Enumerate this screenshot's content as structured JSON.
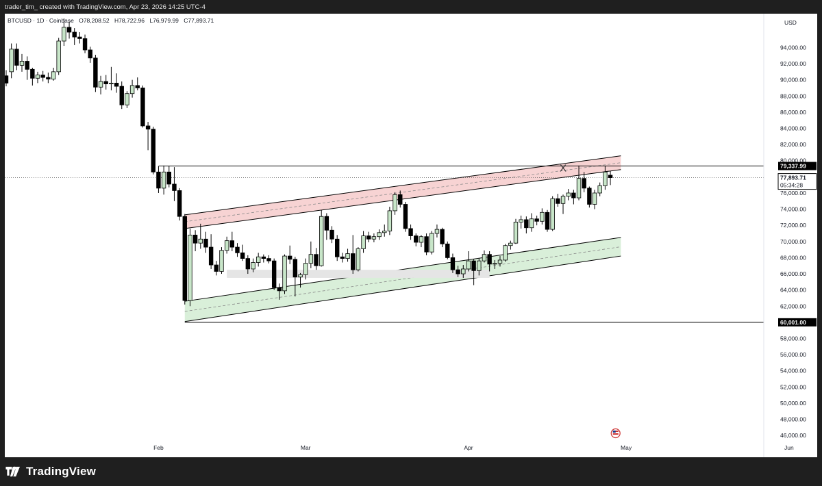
{
  "caption": "trader_tim_ created with TradingView.com, Apr 23, 2026 14:25 UTC-4",
  "symbol": {
    "ticker": "BTCUSD · 1D · Coinbase",
    "open": "O78,208.52",
    "high": "H78,722.96",
    "low": "L76,979.99",
    "close": "C77,893.71"
  },
  "brand": {
    "name": "TradingView"
  },
  "colors": {
    "up_fill": "#c8e6c9",
    "down_fill": "#000000",
    "wick": "#000000",
    "resistance_band": "#f7d3d3",
    "support_band": "#d9efd9",
    "consolidation_zone": "#e5e5e5"
  },
  "chart_data": {
    "type": "candlestick",
    "currency": "USD",
    "ylim": [
      45000,
      97000
    ],
    "yticks": [
      46000,
      48000,
      50000,
      52000,
      54000,
      56000,
      58000,
      60000,
      62000,
      64000,
      66000,
      68000,
      70000,
      72000,
      74000,
      76000,
      78000,
      80000,
      82000,
      84000,
      86000,
      88000,
      90000,
      92000,
      94000
    ],
    "ytick_labels": [
      "46,000.00",
      "48,000.00",
      "50,000.00",
      "52,000.00",
      "54,000.00",
      "56,000.00",
      "58,000.00",
      "60,000.00",
      "62,000.00",
      "64,000.00",
      "66,000.00",
      "68,000.00",
      "70,000.00",
      "72,000.00",
      "74,000.00",
      "76,000.00",
      "78,000.00",
      "80,000.00",
      "82,000.00",
      "84,000.00",
      "86,000.00",
      "88,000.00",
      "90,000.00",
      "92,000.00",
      "94,000.00"
    ],
    "xticks": [
      {
        "date": "2026-02-01",
        "label": "Feb"
      },
      {
        "date": "2026-03-01",
        "label": "Mar"
      },
      {
        "date": "2026-04-01",
        "label": "Apr"
      },
      {
        "date": "2026-05-01",
        "label": "May"
      },
      {
        "date": "2026-06-01",
        "label": "Jun"
      }
    ],
    "xlim": [
      "2026-01-03",
      "2026-06-01"
    ],
    "current_price": {
      "value": 77893.71,
      "label": "77,893.71",
      "countdown": "05:34:28"
    },
    "horizontal_levels": [
      {
        "value": 79337.99,
        "label": "79,337.99",
        "from": "2026-02-01"
      },
      {
        "value": 60001.0,
        "label": "60,001.00",
        "from": "2026-02-06"
      }
    ],
    "channel": {
      "upper_band": {
        "from": {
          "date": "2026-02-06",
          "top": 73300,
          "bottom": 71600
        },
        "to": {
          "date": "2026-04-30",
          "top": 80600,
          "bottom": 78900
        }
      },
      "lower_band": {
        "from": {
          "date": "2026-02-06",
          "top": 62600,
          "bottom": 60100
        },
        "to": {
          "date": "2026-04-30",
          "top": 70500,
          "bottom": 68200
        }
      }
    },
    "zone": {
      "from": "2026-02-14",
      "to": "2026-04-05",
      "top": 66500,
      "bottom": 65500
    },
    "marker": {
      "date": "2026-04-19",
      "label": "X",
      "value": 79100
    },
    "event_icon": {
      "date": "2026-04-29",
      "name": "us-flag-icon"
    },
    "candles": [
      [
        "2026-01-03",
        90500,
        91200,
        89200,
        89600
      ],
      [
        "2026-01-04",
        91000,
        94500,
        90200,
        93800
      ],
      [
        "2026-01-05",
        93800,
        94500,
        91200,
        91800
      ],
      [
        "2026-01-06",
        91800,
        93200,
        91000,
        92300
      ],
      [
        "2026-01-07",
        92300,
        92900,
        90000,
        91300
      ],
      [
        "2026-01-08",
        91300,
        91500,
        89300,
        90200
      ],
      [
        "2026-01-09",
        90200,
        91000,
        89600,
        90600
      ],
      [
        "2026-01-10",
        90600,
        91100,
        89800,
        90300
      ],
      [
        "2026-01-11",
        90300,
        90900,
        89600,
        90100
      ],
      [
        "2026-01-12",
        90100,
        91500,
        89900,
        91000
      ],
      [
        "2026-01-13",
        91000,
        95200,
        90600,
        94800
      ],
      [
        "2026-01-14",
        94800,
        97600,
        94200,
        96500
      ],
      [
        "2026-01-15",
        96500,
        97200,
        95100,
        95900
      ],
      [
        "2026-01-16",
        95900,
        96400,
        94300,
        95300
      ],
      [
        "2026-01-17",
        95300,
        95900,
        94500,
        95100
      ],
      [
        "2026-01-18",
        95100,
        95600,
        93300,
        93700
      ],
      [
        "2026-01-19",
        93700,
        94100,
        92100,
        92700
      ],
      [
        "2026-01-20",
        92700,
        93100,
        88500,
        89100
      ],
      [
        "2026-01-21",
        89100,
        90500,
        88200,
        89800
      ],
      [
        "2026-01-22",
        89800,
        90600,
        88800,
        89500
      ],
      [
        "2026-01-23",
        89500,
        91600,
        88700,
        89600
      ],
      [
        "2026-01-24",
        89600,
        90800,
        88400,
        89200
      ],
      [
        "2026-01-25",
        89200,
        89800,
        86400,
        86900
      ],
      [
        "2026-01-26",
        86900,
        88600,
        86500,
        88300
      ],
      [
        "2026-01-27",
        88300,
        90000,
        87800,
        89300
      ],
      [
        "2026-01-28",
        89300,
        90300,
        88700,
        89000
      ],
      [
        "2026-01-29",
        89000,
        89300,
        84100,
        84300
      ],
      [
        "2026-01-30",
        84300,
        84800,
        81300,
        83900
      ],
      [
        "2026-01-31",
        83900,
        84200,
        78300,
        78600
      ],
      [
        "2026-02-01",
        78600,
        79300,
        76000,
        76600
      ],
      [
        "2026-02-02",
        76600,
        79400,
        75800,
        78600
      ],
      [
        "2026-02-03",
        78600,
        79300,
        76700,
        77100
      ],
      [
        "2026-02-04",
        77100,
        79200,
        75000,
        76300
      ],
      [
        "2026-02-05",
        76300,
        76600,
        72600,
        73100
      ],
      [
        "2026-02-06",
        73100,
        73400,
        62200,
        62700
      ],
      [
        "2026-02-07",
        62700,
        71600,
        62000,
        70800
      ],
      [
        "2026-02-08",
        70800,
        71400,
        68800,
        69800
      ],
      [
        "2026-02-09",
        69800,
        72200,
        69100,
        70300
      ],
      [
        "2026-02-10",
        70300,
        71200,
        68600,
        69300
      ],
      [
        "2026-02-11",
        69300,
        70900,
        66600,
        67100
      ],
      [
        "2026-02-12",
        67100,
        67600,
        65800,
        66300
      ],
      [
        "2026-02-13",
        66300,
        69300,
        66000,
        68900
      ],
      [
        "2026-02-14",
        68900,
        70600,
        68500,
        70100
      ],
      [
        "2026-02-15",
        70100,
        71200,
        68800,
        69300
      ],
      [
        "2026-02-16",
        69300,
        69800,
        68100,
        68600
      ],
      [
        "2026-02-17",
        68600,
        69600,
        67600,
        67900
      ],
      [
        "2026-02-18",
        67900,
        68300,
        66000,
        66600
      ],
      [
        "2026-02-19",
        66600,
        67900,
        66200,
        67400
      ],
      [
        "2026-02-20",
        67400,
        68600,
        66900,
        68100
      ],
      [
        "2026-02-21",
        68100,
        68400,
        67400,
        67900
      ],
      [
        "2026-02-22",
        67900,
        68300,
        67300,
        67600
      ],
      [
        "2026-02-23",
        67600,
        67900,
        64000,
        64300
      ],
      [
        "2026-02-24",
        64300,
        64800,
        62800,
        63900
      ],
      [
        "2026-02-25",
        63900,
        68400,
        63500,
        68200
      ],
      [
        "2026-02-26",
        68200,
        69500,
        67200,
        67800
      ],
      [
        "2026-02-27",
        67800,
        68100,
        63200,
        65600
      ],
      [
        "2026-02-28",
        65600,
        66100,
        64300,
        65900
      ],
      [
        "2026-03-01",
        65900,
        67900,
        65300,
        67300
      ],
      [
        "2026-03-02",
        67300,
        70000,
        66700,
        68400
      ],
      [
        "2026-03-03",
        68400,
        69200,
        66500,
        67000
      ],
      [
        "2026-03-04",
        67000,
        73900,
        66900,
        73100
      ],
      [
        "2026-03-05",
        73100,
        73500,
        70200,
        71400
      ],
      [
        "2026-03-06",
        71400,
        71900,
        69800,
        70300
      ],
      [
        "2026-03-07",
        70300,
        70800,
        67600,
        68100
      ],
      [
        "2026-03-08",
        68100,
        68600,
        67400,
        67900
      ],
      [
        "2026-03-09",
        67900,
        69100,
        67500,
        68500
      ],
      [
        "2026-03-10",
        68500,
        70800,
        66000,
        66500
      ],
      [
        "2026-03-11",
        66500,
        69300,
        66300,
        69100
      ],
      [
        "2026-03-12",
        69100,
        71300,
        68600,
        70700
      ],
      [
        "2026-03-13",
        70700,
        71200,
        69900,
        70300
      ],
      [
        "2026-03-14",
        70300,
        71000,
        69900,
        70600
      ],
      [
        "2026-03-15",
        70600,
        71500,
        70200,
        71100
      ],
      [
        "2026-03-16",
        71100,
        72100,
        70600,
        71300
      ],
      [
        "2026-03-17",
        71300,
        74300,
        70800,
        73800
      ],
      [
        "2026-03-18",
        73800,
        76100,
        73300,
        75800
      ],
      [
        "2026-03-19",
        75800,
        76300,
        74200,
        74600
      ],
      [
        "2026-03-20",
        74600,
        74900,
        71200,
        71600
      ],
      [
        "2026-03-21",
        71600,
        72100,
        70200,
        70700
      ],
      [
        "2026-03-22",
        70700,
        71000,
        69400,
        69900
      ],
      [
        "2026-03-23",
        69900,
        70800,
        69300,
        70600
      ],
      [
        "2026-03-24",
        70600,
        71000,
        68300,
        68700
      ],
      [
        "2026-03-25",
        68700,
        71300,
        68400,
        71000
      ],
      [
        "2026-03-26",
        71000,
        72100,
        70500,
        71500
      ],
      [
        "2026-03-27",
        71500,
        71700,
        69300,
        69700
      ],
      [
        "2026-03-28",
        69700,
        70000,
        67800,
        68000
      ],
      [
        "2026-03-29",
        68000,
        68500,
        66100,
        66500
      ],
      [
        "2026-03-30",
        66500,
        67000,
        65600,
        66000
      ],
      [
        "2026-03-31",
        66000,
        67100,
        65500,
        66600
      ],
      [
        "2026-04-01",
        66600,
        68800,
        66300,
        67600
      ],
      [
        "2026-04-02",
        67600,
        67800,
        64600,
        66400
      ],
      [
        "2026-04-03",
        66400,
        67900,
        65800,
        67600
      ],
      [
        "2026-04-04",
        67600,
        68900,
        67400,
        68400
      ],
      [
        "2026-04-05",
        68400,
        68800,
        66300,
        67200
      ],
      [
        "2026-04-06",
        67200,
        67700,
        66600,
        67300
      ],
      [
        "2026-04-07",
        67300,
        68200,
        66900,
        67700
      ],
      [
        "2026-04-08",
        67700,
        69700,
        67500,
        69500
      ],
      [
        "2026-04-09",
        69500,
        70100,
        69000,
        69800
      ],
      [
        "2026-04-10",
        69800,
        72800,
        69700,
        72400
      ],
      [
        "2026-04-11",
        72400,
        73200,
        71600,
        72700
      ],
      [
        "2026-04-12",
        72700,
        73100,
        71000,
        71700
      ],
      [
        "2026-04-13",
        71700,
        73500,
        71200,
        72800
      ],
      [
        "2026-04-14",
        72800,
        73200,
        72000,
        72500
      ],
      [
        "2026-04-15",
        72500,
        74100,
        72100,
        73600
      ],
      [
        "2026-04-16",
        73600,
        73900,
        71200,
        71500
      ],
      [
        "2026-04-17",
        71500,
        75600,
        71300,
        75300
      ],
      [
        "2026-04-18",
        75300,
        75900,
        74300,
        74700
      ],
      [
        "2026-04-19",
        74700,
        75800,
        73400,
        75600
      ],
      [
        "2026-04-20",
        75600,
        76500,
        75100,
        76000
      ],
      [
        "2026-04-21",
        76000,
        76400,
        74600,
        75400
      ],
      [
        "2026-04-22",
        75400,
        79400,
        75100,
        77800
      ],
      [
        "2026-04-23",
        77800,
        78600,
        76100,
        76600
      ],
      [
        "2026-04-24",
        76600,
        76800,
        74200,
        74600
      ],
      [
        "2026-04-25",
        74600,
        76400,
        74000,
        76000
      ],
      [
        "2026-04-26",
        76000,
        77300,
        75600,
        76900
      ],
      [
        "2026-04-27",
        76900,
        79300,
        76400,
        78600
      ],
      [
        "2026-04-28",
        78208.52,
        78722.96,
        76979.99,
        77893.71
      ]
    ]
  }
}
